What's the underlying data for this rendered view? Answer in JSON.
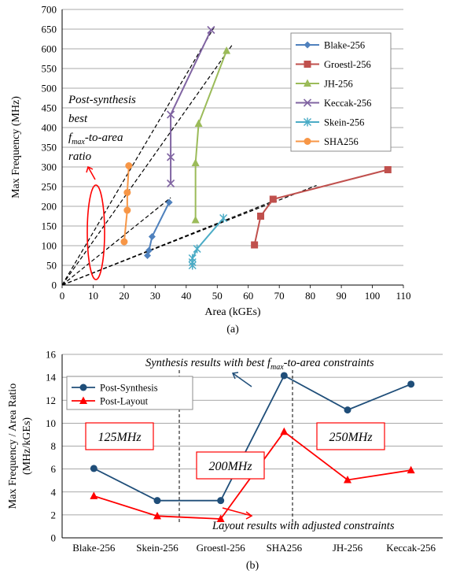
{
  "chart_data": [
    {
      "type": "line",
      "caption": "(a)",
      "xlabel": "Area (kGEs)",
      "ylabel": "Max Frequency (MHz)",
      "xlim": [
        0,
        110
      ],
      "ylim": [
        0,
        700
      ],
      "xticks": [
        0,
        10,
        20,
        30,
        40,
        50,
        60,
        70,
        80,
        90,
        100,
        110
      ],
      "yticks": [
        0,
        50,
        100,
        150,
        200,
        250,
        300,
        350,
        400,
        450,
        500,
        550,
        600,
        650,
        700
      ],
      "grid": "horizontal",
      "legend_position": "right",
      "annotation_lines": [
        "Post-synthesis",
        "best",
        "-to-area",
        "ratio"
      ],
      "annotation_fmax": "f",
      "annotation_fmax_sub": "max",
      "series": [
        {
          "name": "Blake-256",
          "color": "#4f81bd",
          "marker": "diamond",
          "points": [
            [
              27.5,
              75
            ],
            [
              28,
              88
            ],
            [
              29,
              123
            ],
            [
              34.5,
              210
            ]
          ]
        },
        {
          "name": "Groestl-256",
          "color": "#c0504d",
          "marker": "square",
          "points": [
            [
              62,
              102
            ],
            [
              64,
              175
            ],
            [
              68,
              218
            ],
            [
              105,
              293
            ]
          ]
        },
        {
          "name": "JH-256",
          "color": "#9bbb59",
          "marker": "triangle",
          "points": [
            [
              43,
              165
            ],
            [
              43,
              310
            ],
            [
              44,
              410
            ],
            [
              53,
              595
            ]
          ]
        },
        {
          "name": "Keccak-256",
          "color": "#8064a2",
          "marker": "x",
          "points": [
            [
              35,
              258
            ],
            [
              35,
              325
            ],
            [
              35,
              433
            ],
            [
              48,
              648
            ]
          ]
        },
        {
          "name": "Skein-256",
          "color": "#4bacc6",
          "marker": "star",
          "points": [
            [
              42,
              50
            ],
            [
              42,
              58
            ],
            [
              42,
              68
            ],
            [
              43.5,
              92
            ],
            [
              52,
              170
            ]
          ]
        },
        {
          "name": "SHA256",
          "color": "#f79646",
          "marker": "circle",
          "points": [
            [
              20,
              110
            ],
            [
              21,
              190
            ],
            [
              21,
              235
            ],
            [
              21.5,
              303
            ]
          ]
        }
      ],
      "ratio_lines": [
        [
          55,
          612
        ],
        [
          49,
          655
        ],
        [
          35,
          222
        ],
        [
          82,
          253
        ],
        [
          67,
          210
        ]
      ]
    },
    {
      "type": "line",
      "caption": "(b)",
      "xlabel": "",
      "ylabel_lines": [
        "Max Frequency / Area Ratio",
        "(MHz/kGEs)"
      ],
      "ylim": [
        0,
        16
      ],
      "yticks": [
        0,
        2,
        4,
        6,
        8,
        10,
        12,
        14,
        16
      ],
      "grid": "horizontal",
      "legend_position": "top-left",
      "categories": [
        "Blake-256",
        "Skein-256",
        "Groestl-256",
        "SHA256",
        "JH-256",
        "Keccak-256"
      ],
      "series": [
        {
          "name": "Post-Synthesis",
          "color": "#1f4e79",
          "marker": "circle",
          "values": [
            6.05,
            3.25,
            3.25,
            14.15,
            11.15,
            13.4
          ]
        },
        {
          "name": "Post-Layout",
          "color": "#ff0000",
          "marker": "triangle",
          "values": [
            3.65,
            1.9,
            1.65,
            9.25,
            5.05,
            5.9
          ]
        }
      ],
      "annotation_top_prefix": "Synthesis results with best ",
      "annotation_top_f": "f",
      "annotation_top_sub": "max",
      "annotation_top_suffix": "-to-area constraints",
      "annotation_bottom": "Layout results with adjusted constraints",
      "boxes": [
        "125MHz",
        "200MHz",
        "250MHz"
      ]
    }
  ]
}
